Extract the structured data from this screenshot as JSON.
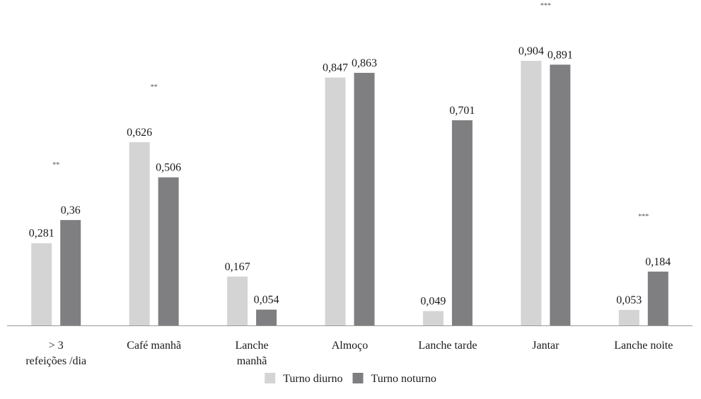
{
  "chart_data": {
    "type": "bar",
    "categories": [
      [
        "> 3",
        "refeições /dia"
      ],
      [
        "Café manhã"
      ],
      [
        "Lanche",
        "manhã"
      ],
      [
        "Almoço"
      ],
      [
        "Lanche tarde"
      ],
      [
        "Jantar"
      ],
      [
        "Lanche noite"
      ]
    ],
    "series": [
      {
        "name": "Turno diurno",
        "color": "#d4d4d4",
        "values": [
          0.281,
          0.626,
          0.167,
          0.847,
          0.049,
          0.904,
          0.053
        ],
        "value_labels": [
          "0,281",
          "0,626",
          "0,167",
          "0,847",
          "0,049",
          "0,904",
          "0,053"
        ]
      },
      {
        "name": "Turno noturno",
        "color": "#7f7f81",
        "values": [
          0.36,
          0.506,
          0.054,
          0.863,
          0.701,
          0.891,
          0.184
        ],
        "value_labels": [
          "0,36",
          "0,506",
          "0,054",
          "0,863",
          "0,701",
          "0,891",
          "0,184"
        ]
      }
    ],
    "significance": [
      "**",
      "**",
      "",
      "",
      "",
      "***",
      "***"
    ],
    "ylim": [
      0,
      0.904
    ],
    "grid": false,
    "legend_position": "bottom-center",
    "axis_color": "#9a9a9a"
  }
}
